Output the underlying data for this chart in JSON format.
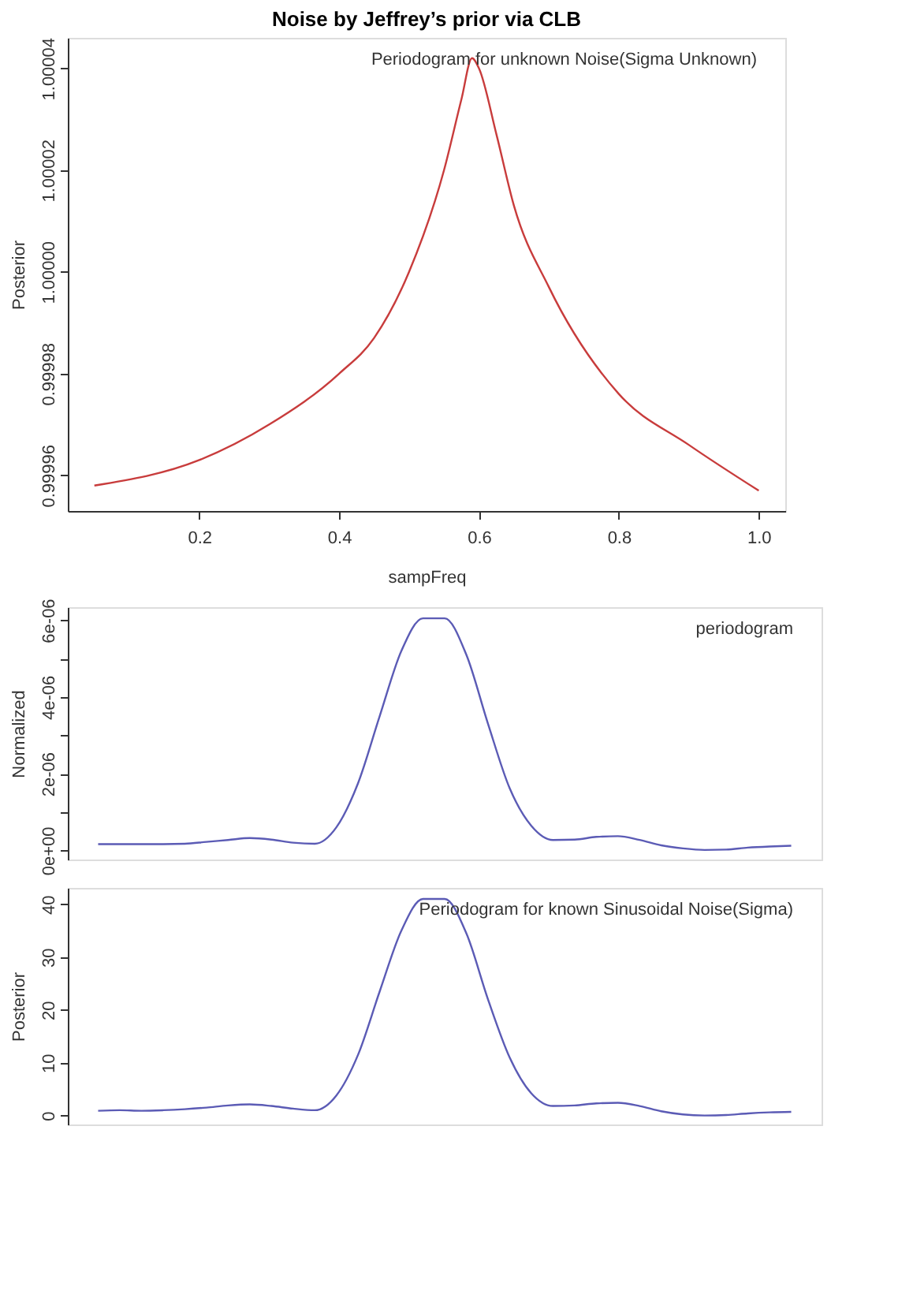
{
  "chart_data": [
    {
      "type": "line",
      "title": "Noise by Jeffrey’s prior via CLB",
      "xlabel": "sampFreq",
      "ylabel": "Posterior",
      "x": [
        0.05,
        0.2,
        0.3,
        0.4,
        0.45,
        0.5,
        0.55,
        0.575,
        0.59,
        0.6,
        0.625,
        0.65,
        0.7,
        0.8,
        0.9,
        1.0
      ],
      "series": [
        {
          "color": "#c83c3c",
          "values": [
            0.999958,
            0.999963,
            0.99997,
            0.99998,
            0.999987,
            1.0,
            1.00002,
            1.000034,
            1.000042,
            1.00004,
            1.000027,
            1.000013,
            0.999997,
            0.999976,
            0.999966,
            0.999957
          ]
        }
      ],
      "xlim": [
        0.012,
        1.038
      ],
      "ylim": [
        0.999953,
        1.000046
      ],
      "xticks": [
        0.2,
        0.4,
        0.6,
        0.8,
        {
          "value": 1.0,
          "label": "1.0"
        }
      ],
      "yticks": [
        0.99996,
        0.99998,
        {
          "value": 1.0,
          "label": "1.00000"
        },
        1.00002,
        1.00004
      ],
      "annotations": [
        "Periodogram for unknown Noise(Sigma Unknown)"
      ]
    },
    {
      "type": "line",
      "ylabel": "Normalized",
      "tick_labels": "y",
      "categories": [
        null,
        null,
        null,
        null,
        null,
        null,
        null,
        null,
        null,
        null,
        null,
        null,
        null,
        null,
        null,
        null,
        null,
        null,
        null,
        null,
        null,
        null,
        null,
        null,
        null,
        null,
        null,
        null,
        null,
        null,
        null,
        null,
        null
      ],
      "series": [
        {
          "color": "#5b5bb5",
          "values": [
            1.6e-07,
            1.6e-07,
            1.6e-07,
            1.6e-07,
            1.7e-07,
            2.2e-07,
            2.7e-07,
            3.2e-07,
            2.8e-07,
            2e-07,
            1.7e-07,
            6e-07,
            1.75e-06,
            3.5e-06,
            5.2e-06,
            6.05e-06,
            6.05e-06,
            5.1e-06,
            3.3e-06,
            1.62e-06,
            6.4e-07,
            2.7e-07,
            2.8e-07,
            3.5e-07,
            3.7e-07,
            2.7e-07,
            1.3e-07,
            5e-08,
            1e-08,
            2e-08,
            7e-08,
            1e-07,
            1.2e-07
          ]
        }
      ],
      "ylim": [
        -2.4e-07,
        6.34e-06
      ],
      "yticks": [
        {
          "value": 0,
          "label": "0e+00"
        },
        {
          "value": 1e-06,
          "label": null
        },
        {
          "value": 2e-06,
          "label": "2e-06"
        },
        {
          "value": 3e-06,
          "label": null
        },
        {
          "value": 4e-06,
          "label": "4e-06"
        },
        {
          "value": 5e-06,
          "label": null
        },
        {
          "value": 6e-06,
          "label": "6e-06"
        }
      ],
      "annotations": [
        "periodogram"
      ]
    },
    {
      "type": "line",
      "ylabel": "Posterior",
      "tick_labels": "y",
      "categories": [
        null,
        null,
        null,
        null,
        null,
        null,
        null,
        null,
        null,
        null,
        null,
        null,
        null,
        null,
        null,
        null,
        null,
        null,
        null,
        null,
        null,
        null,
        null,
        null,
        null,
        null,
        null,
        null,
        null,
        null,
        null,
        null,
        null
      ],
      "series": [
        {
          "color": "#5b5bb5",
          "values": [
            0.9,
            1.0,
            0.9,
            1.0,
            1.2,
            1.5,
            1.9,
            2.1,
            1.8,
            1.3,
            1.0,
            3.8,
            11.5,
            23.5,
            35,
            41,
            41,
            34.5,
            22,
            11,
            4.2,
            1.8,
            1.9,
            2.3,
            2.4,
            1.8,
            0.8,
            0.2,
            0.0,
            0.1,
            0.4,
            0.6,
            0.7
          ]
        }
      ],
      "ylim": [
        -1.7,
        43.1
      ],
      "yticks": [
        0,
        10,
        20,
        30,
        40
      ],
      "annotations": [
        "Periodogram for known Sinusoidal Noise(Sigma)"
      ]
    }
  ]
}
